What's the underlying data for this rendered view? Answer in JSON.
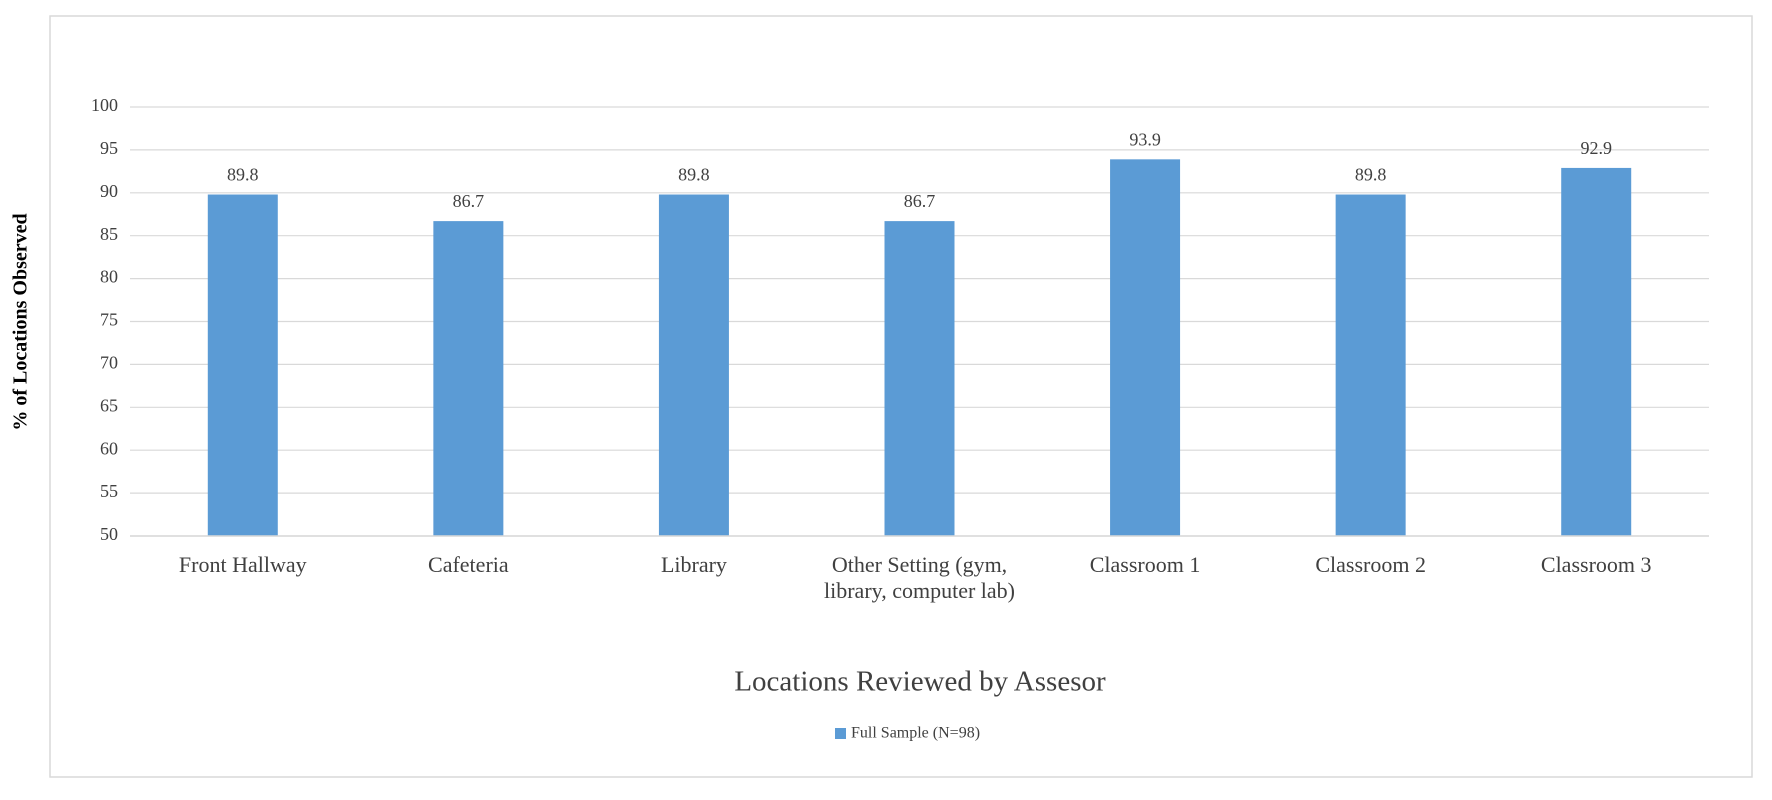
{
  "chart_data": {
    "type": "bar",
    "x_label": "Locations Reviewed by Assesor",
    "y_label": "% of Locations Observed",
    "categories": [
      "Front Hallway",
      "Cafeteria",
      "Library",
      "Other Setting (gym, library, computer lab)",
      "Classroom 1",
      "Classroom 2",
      "Classroom 3"
    ],
    "series": [
      {
        "name": "Full Sample (N=98)",
        "color": "#5b9bd5",
        "values": [
          89.8,
          86.7,
          89.8,
          86.7,
          93.9,
          89.8,
          92.9
        ]
      }
    ],
    "ylim": [
      50,
      100
    ],
    "yticks": [
      50,
      55,
      60,
      65,
      70,
      75,
      80,
      85,
      90,
      95,
      100
    ],
    "grid": true,
    "legend": "bottom"
  }
}
